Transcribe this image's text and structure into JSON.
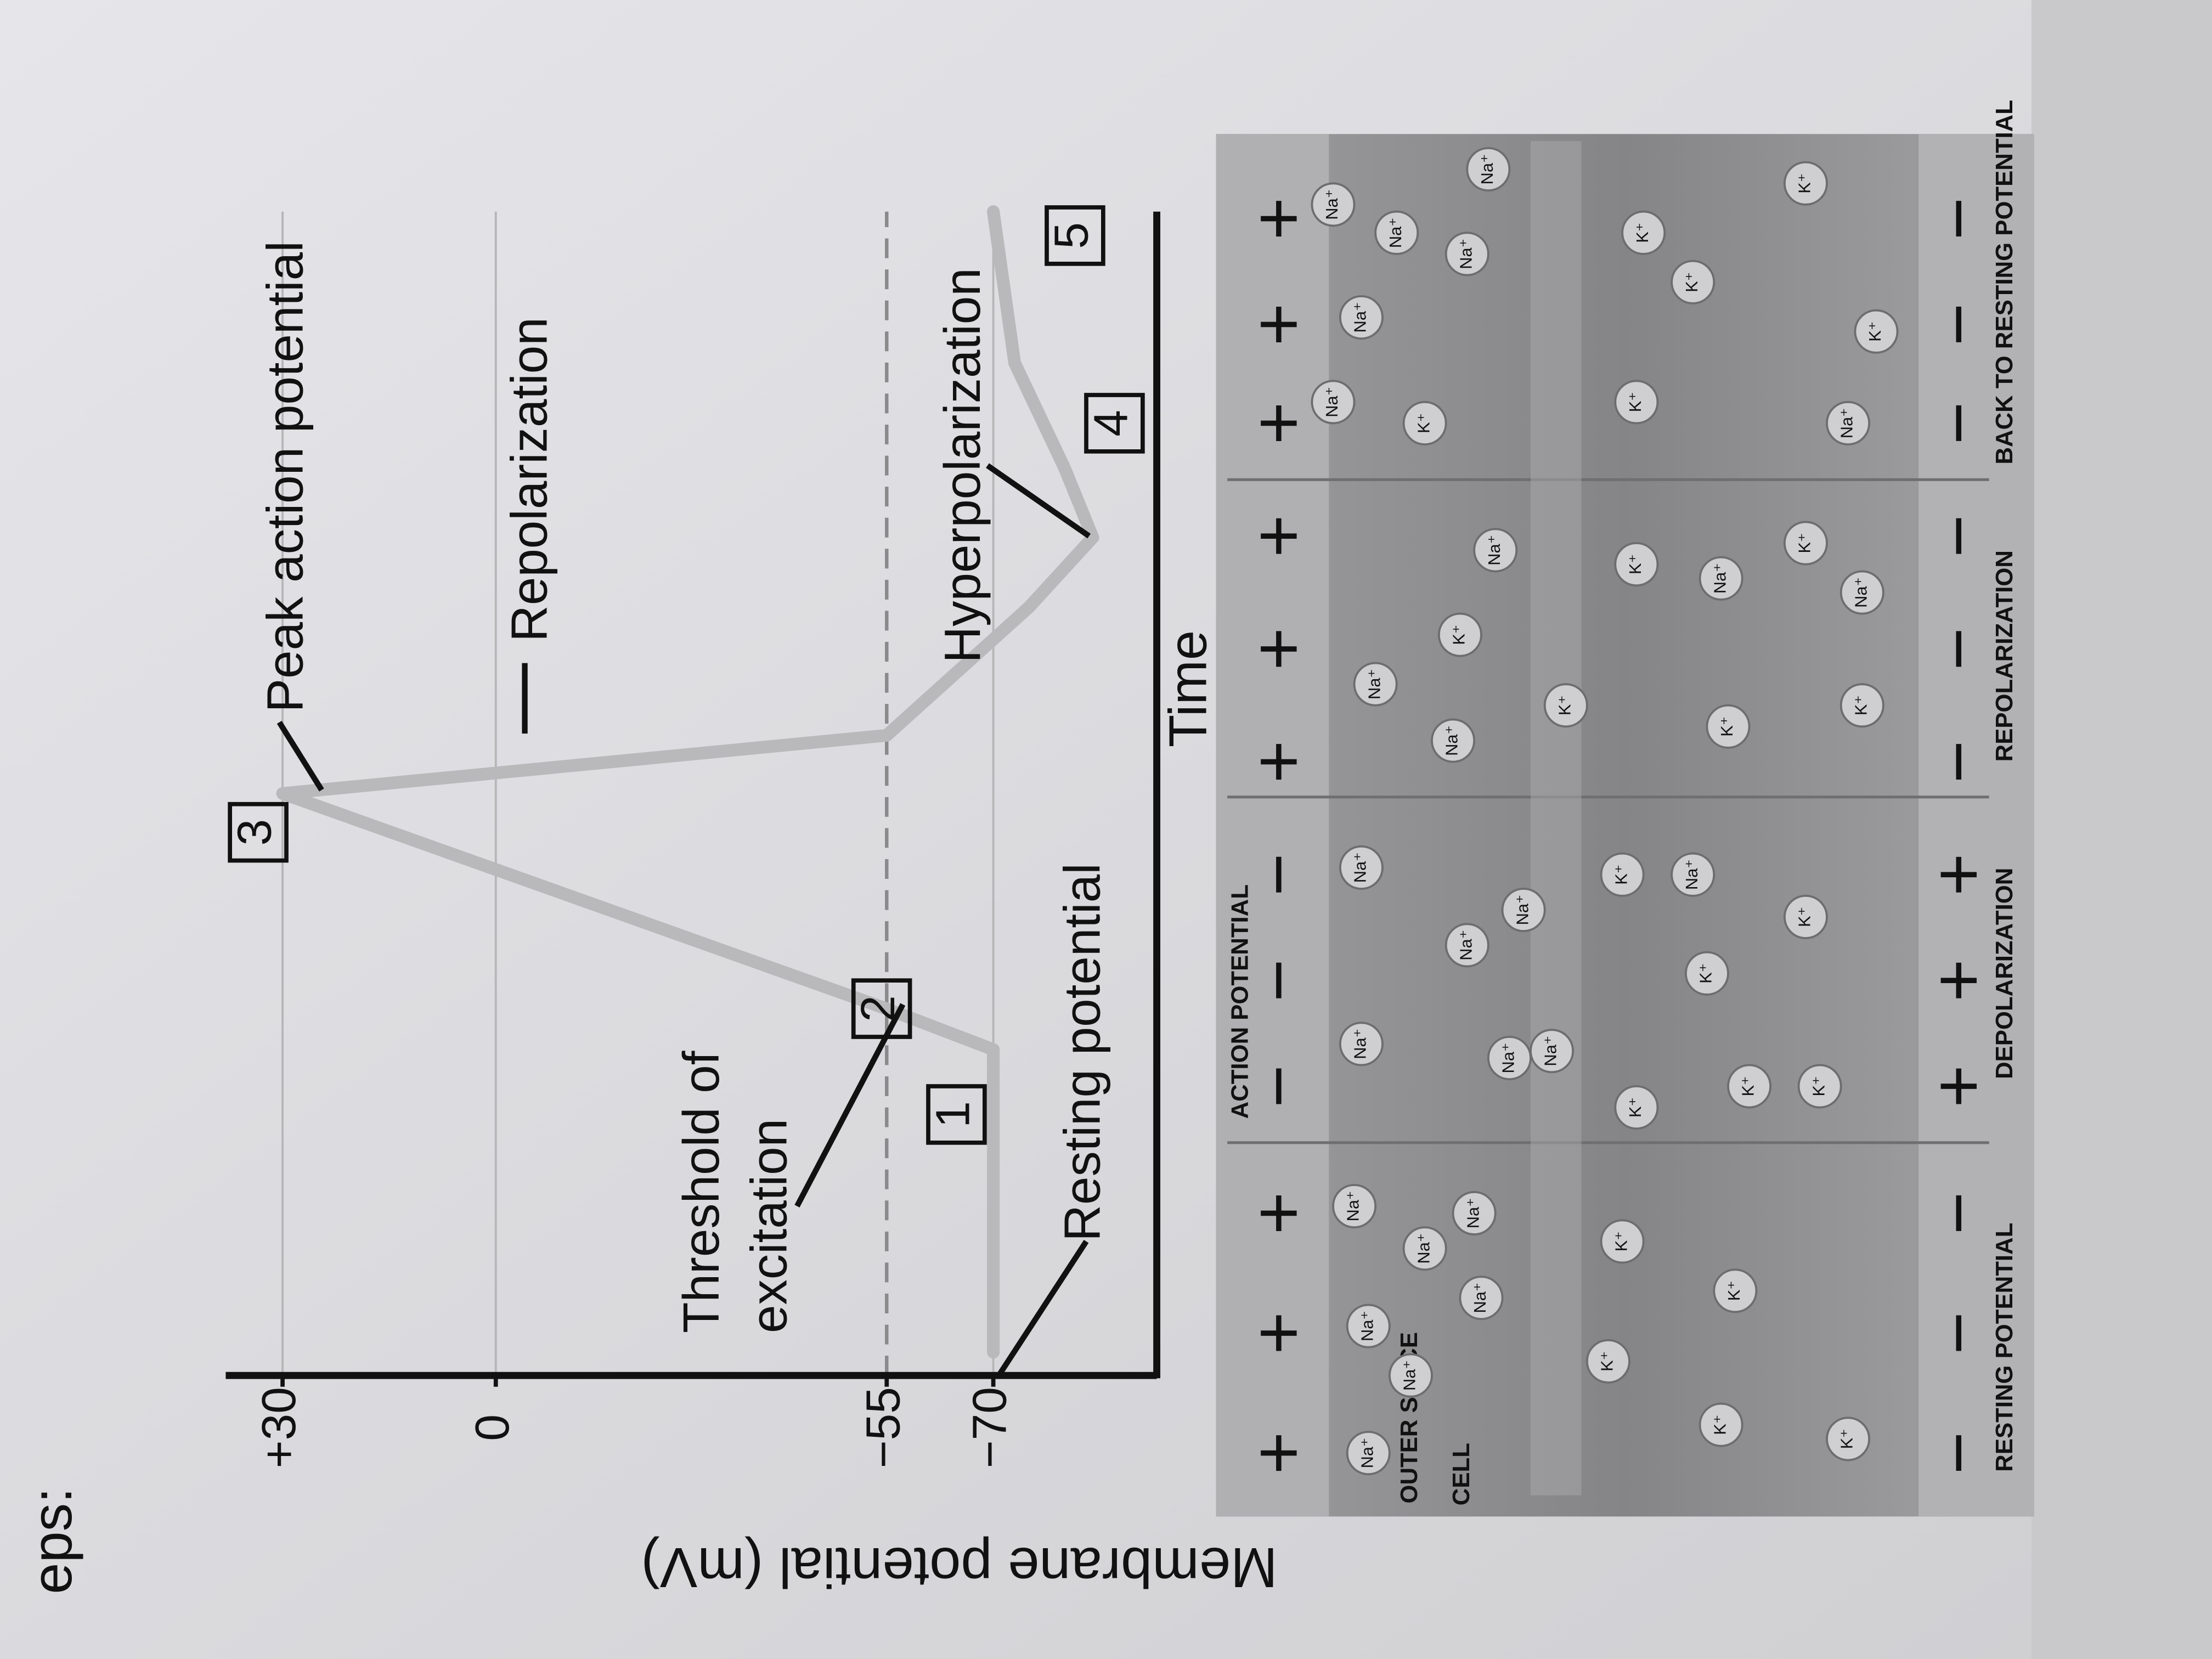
{
  "page_heading": "eps:",
  "chart_data": {
    "type": "line",
    "y_label": "Membrane potential (mV)",
    "x_label": "Time",
    "x": [
      2,
      28,
      31.5,
      50,
      55,
      66,
      72,
      78,
      87,
      100
    ],
    "values": [
      -70,
      -70,
      -55,
      30,
      -55,
      -75,
      -84,
      -80,
      -73,
      -70
    ],
    "color": "#b9b9bb",
    "xlim": [
      0,
      100
    ],
    "ylim": [
      -93,
      38
    ],
    "yticks": [
      {
        "value": 30,
        "label": "+30"
      },
      0,
      {
        "value": -55,
        "label": "−55"
      },
      {
        "value": -70,
        "label": "−70"
      }
    ],
    "grid": true,
    "dashed_at": -55,
    "annotations": [
      "Peak action potential",
      "Repolarization",
      "Hyperpolarization",
      "Resting potential",
      "Threshold of",
      "excitation"
    ],
    "steps": [
      1,
      2,
      3,
      4,
      5
    ]
  },
  "diagram": {
    "title": "ACTION POTENTIAL",
    "outer_label": "OUTER SPACE",
    "cell_label": "CELL",
    "stages": [
      "RESTING POTENTIAL",
      "DEPOLARIZATION",
      "REPOLARIZATION",
      "BACK TO RESTING POTENTIAL"
    ],
    "outer_charges": [
      "+",
      "+",
      "+",
      "−",
      "−",
      "−",
      "+",
      "+",
      "+",
      "+",
      "+",
      "+"
    ],
    "inner_charges": [
      "−",
      "−",
      "−",
      "+",
      "+",
      "+",
      "−",
      "−",
      "−",
      "−",
      "−",
      "−"
    ],
    "ions": {
      "na": "Na⁺",
      "k": "K⁺"
    }
  }
}
